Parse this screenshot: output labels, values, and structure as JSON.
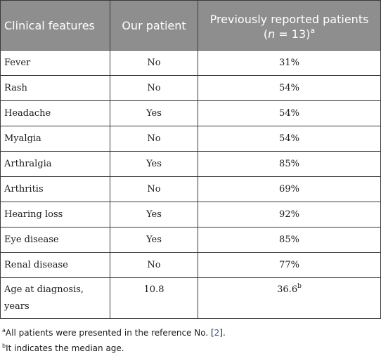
{
  "table": {
    "headers": {
      "clinical_features": "Clinical features",
      "our_patient": "Our patient",
      "previous_line1": "Previously reported patients",
      "previous_line2_open": "(",
      "previous_line2_n": "n",
      "previous_line2_eq": " = 13)",
      "previous_sup": "a"
    },
    "rows": [
      {
        "feature": "Fever",
        "our": "No",
        "previous": "31%"
      },
      {
        "feature": "Rash",
        "our": "No",
        "previous": "54%"
      },
      {
        "feature": "Headache",
        "our": "Yes",
        "previous": "54%"
      },
      {
        "feature": "Myalgia",
        "our": "No",
        "previous": "54%"
      },
      {
        "feature": "Arthralgia",
        "our": "Yes",
        "previous": "85%"
      },
      {
        "feature": "Arthritis",
        "our": "No",
        "previous": "69%"
      },
      {
        "feature": "Hearing loss",
        "our": "Yes",
        "previous": "92%"
      },
      {
        "feature": "Eye disease",
        "our": "Yes",
        "previous": "85%"
      },
      {
        "feature": "Renal disease",
        "our": "No",
        "previous": "77%"
      },
      {
        "feature": "Age at diagnosis, years",
        "our": "10.8",
        "previous": "36.6",
        "previous_sup": "b"
      }
    ]
  },
  "footnotes": {
    "a_mark": "a",
    "a_text": "All patients were presented in the reference No. [",
    "a_ref": "2",
    "a_end": "].",
    "b_mark": "b",
    "b_text": "It indicates the median age."
  }
}
